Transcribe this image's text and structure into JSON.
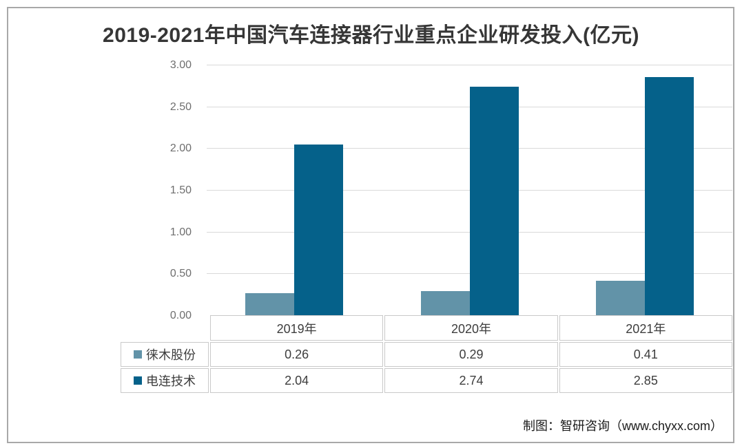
{
  "title": "2019-2021年中国汽车连接器行业重点企业研发投入(亿元)",
  "attribution": "制图：智研咨询（www.chyxx.com）",
  "chart_data": {
    "type": "bar",
    "title": "2019-2021年中国汽车连接器行业重点企业研发投入(亿元)",
    "unit": "亿元",
    "categories": [
      "2019年",
      "2020年",
      "2021年"
    ],
    "series": [
      {
        "name": "徕木股份",
        "color": "#6293a8",
        "values": [
          0.26,
          0.29,
          0.41
        ]
      },
      {
        "name": "电连技术",
        "color": "#05618a",
        "values": [
          2.04,
          2.74,
          2.85
        ]
      }
    ],
    "xlabel": "",
    "ylabel": "",
    "ylim": [
      0,
      3
    ],
    "yticks": [
      "0.00",
      "0.50",
      "1.00",
      "1.50",
      "2.00",
      "2.50",
      "3.00"
    ],
    "grid": true,
    "legend_position": "table-below-with-row-swatches"
  },
  "colors": {
    "series_light": "#6293a8",
    "series_dark": "#05618a",
    "gridline": "#d9d9d9",
    "frame_border": "#a8a8a8",
    "table_border": "#c9c9c9",
    "title_text": "#363636",
    "axis_text": "#6e6e6e",
    "table_text": "#3d3d3d"
  }
}
